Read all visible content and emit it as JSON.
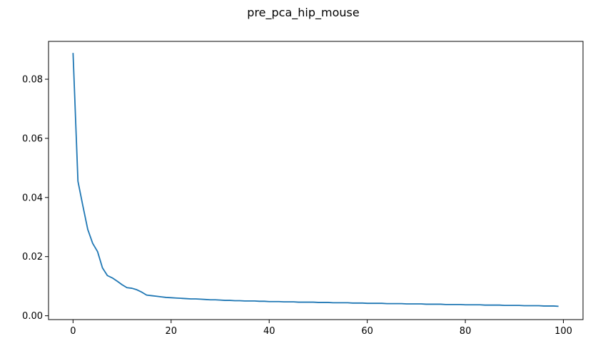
{
  "chart_data": {
    "type": "line",
    "title": "pre_pca_hip_mouse",
    "xlabel": "",
    "ylabel": "",
    "xlim": [
      -5,
      104
    ],
    "ylim": [
      -0.0013,
      0.0928
    ],
    "grid": false,
    "legend": "none",
    "x_ticks": [
      0,
      20,
      40,
      60,
      80,
      100
    ],
    "x_tick_labels": [
      "0",
      "20",
      "40",
      "60",
      "80",
      "100"
    ],
    "y_ticks": [
      0.0,
      0.02,
      0.04,
      0.06,
      0.08
    ],
    "y_tick_labels": [
      "0.00",
      "0.02",
      "0.04",
      "0.06",
      "0.08"
    ],
    "series": [
      {
        "color": "#1f77b4",
        "x": [
          0,
          1,
          2,
          3,
          4,
          5,
          6,
          7,
          8,
          9,
          10,
          11,
          12,
          13,
          14,
          15,
          16,
          17,
          18,
          19,
          20,
          21,
          22,
          23,
          24,
          25,
          26,
          27,
          28,
          29,
          30,
          31,
          32,
          33,
          34,
          35,
          36,
          37,
          38,
          39,
          40,
          41,
          42,
          43,
          44,
          45,
          46,
          47,
          48,
          49,
          50,
          51,
          52,
          53,
          54,
          55,
          56,
          57,
          58,
          59,
          60,
          61,
          62,
          63,
          64,
          65,
          66,
          67,
          68,
          69,
          70,
          71,
          72,
          73,
          74,
          75,
          76,
          77,
          78,
          79,
          80,
          81,
          82,
          83,
          84,
          85,
          86,
          87,
          88,
          89,
          90,
          91,
          92,
          93,
          94,
          95,
          96,
          97,
          98,
          99
        ],
        "y": [
          0.0889,
          0.0455,
          0.0372,
          0.0292,
          0.0245,
          0.0217,
          0.0162,
          0.0136,
          0.0128,
          0.0117,
          0.0105,
          0.0095,
          0.0093,
          0.0088,
          0.008,
          0.007,
          0.0068,
          0.0066,
          0.0064,
          0.0062,
          0.0061,
          0.006,
          0.0059,
          0.0058,
          0.0057,
          0.0057,
          0.0056,
          0.0055,
          0.0054,
          0.0054,
          0.0053,
          0.0052,
          0.0052,
          0.0051,
          0.0051,
          0.005,
          0.005,
          0.005,
          0.0049,
          0.0049,
          0.0048,
          0.0048,
          0.0048,
          0.0047,
          0.0047,
          0.0047,
          0.0046,
          0.0046,
          0.0046,
          0.0046,
          0.0045,
          0.0045,
          0.0045,
          0.0044,
          0.0044,
          0.0044,
          0.0044,
          0.0043,
          0.0043,
          0.0043,
          0.0042,
          0.0042,
          0.0042,
          0.0042,
          0.0041,
          0.0041,
          0.0041,
          0.0041,
          0.004,
          0.004,
          0.004,
          0.004,
          0.0039,
          0.0039,
          0.0039,
          0.0039,
          0.0038,
          0.0038,
          0.0038,
          0.0038,
          0.0037,
          0.0037,
          0.0037,
          0.0037,
          0.0036,
          0.0036,
          0.0036,
          0.0036,
          0.0035,
          0.0035,
          0.0035,
          0.0035,
          0.0034,
          0.0034,
          0.0034,
          0.0034,
          0.0033,
          0.0033,
          0.0033,
          0.0032
        ]
      }
    ]
  }
}
